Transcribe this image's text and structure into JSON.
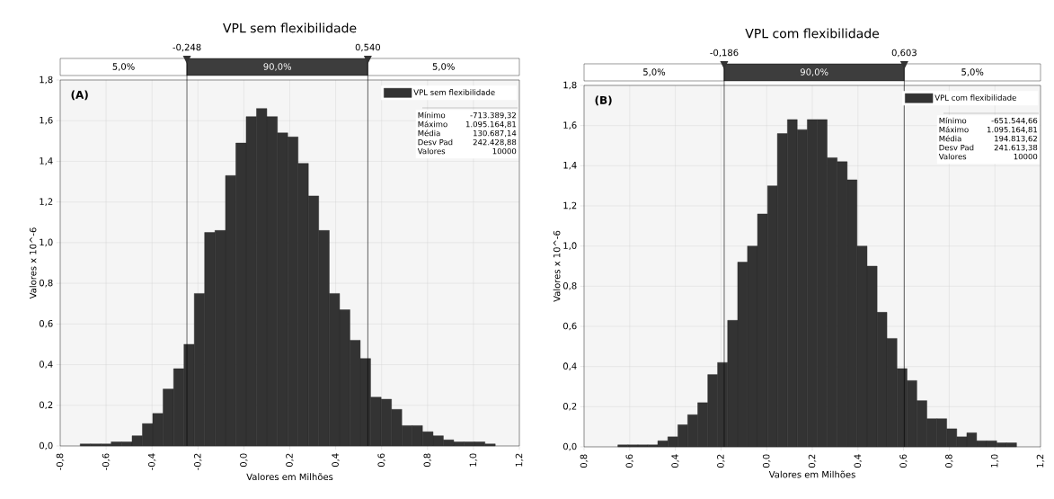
{
  "chart_data": [
    {
      "type": "histogram",
      "title": "VPL sem flexibilidade",
      "xlabel": "Valores em Milhões",
      "ylabel": "Valores x 10^-6",
      "bins": [
        -0.713,
        -0.668,
        -0.623,
        -0.578,
        -0.532,
        -0.487,
        -0.442,
        -0.397,
        -0.352,
        -0.306,
        -0.261,
        -0.216,
        -0.171,
        -0.126,
        -0.08,
        -0.035,
        0.01,
        0.055,
        0.1,
        0.146,
        0.191,
        0.236,
        0.281,
        0.326,
        0.372,
        0.417,
        0.462,
        0.507,
        0.552,
        0.598,
        0.643,
        0.688,
        0.733,
        0.778,
        0.824,
        0.869,
        0.914,
        0.959,
        1.004,
        1.05,
        1.095
      ],
      "series": [
        {
          "name": "VPL sem flexibilidade",
          "color": "#333333",
          "values": [
            0.01,
            0.01,
            0.01,
            0.02,
            0.02,
            0.05,
            0.11,
            0.16,
            0.28,
            0.38,
            0.5,
            0.75,
            1.05,
            1.06,
            1.33,
            1.49,
            1.62,
            1.66,
            1.62,
            1.54,
            1.52,
            1.39,
            1.23,
            1.06,
            0.75,
            0.67,
            0.52,
            0.43,
            0.24,
            0.23,
            0.18,
            0.1,
            0.1,
            0.07,
            0.05,
            0.03,
            0.02,
            0.02,
            0.02,
            0.01
          ]
        }
      ],
      "xlim": [
        -0.8,
        1.2
      ],
      "xticks": [
        {
          "value": -0.8,
          "label": "-0,8"
        },
        {
          "value": -0.6,
          "label": "-0,6"
        },
        {
          "value": -0.4,
          "label": "-0,4"
        },
        {
          "value": -0.2,
          "label": "-0,2"
        },
        {
          "value": 0,
          "label": "0,0"
        },
        {
          "value": 0.2,
          "label": "0,2"
        },
        {
          "value": 0.4,
          "label": "0,4"
        },
        {
          "value": 0.6,
          "label": "0,6"
        },
        {
          "value": 0.8,
          "label": "0,8"
        },
        {
          "value": 1.0,
          "label": "1,0"
        },
        {
          "value": 1.2,
          "label": "1,2"
        }
      ],
      "ylim": [
        0,
        1.8
      ],
      "yticks": [
        {
          "value": 0,
          "label": "0,0"
        },
        {
          "value": 0.2,
          "label": "0,2"
        },
        {
          "value": 0.4,
          "label": "0,4"
        },
        {
          "value": 0.6,
          "label": "0,6"
        },
        {
          "value": 0.8,
          "label": "0,8"
        },
        {
          "value": 1.0,
          "label": "1,0"
        },
        {
          "value": 1.2,
          "label": "1,2"
        },
        {
          "value": 1.4,
          "label": "1,4"
        },
        {
          "value": 1.6,
          "label": "1,6"
        },
        {
          "value": 1.8,
          "label": "1,8"
        }
      ],
      "grid": true,
      "legend": "top right",
      "ref_lines": [
        {
          "axis": "x",
          "value": -0.248,
          "label": "-0,248"
        },
        {
          "axis": "x",
          "value": 0.54,
          "label": "0,540"
        }
      ],
      "annotations": [
        "(A)",
        "Mínimo",
        "-713.389,32",
        "Máximo",
        "1.095.164,81",
        "Média",
        "130.687,14",
        "Desv Pad",
        "242.428,88",
        "Valores",
        "10000",
        "5,0%",
        "90,0%",
        "5,0%"
      ]
    },
    {
      "type": "histogram",
      "title": "VPL com flexibilidade",
      "xlabel": "Valores em Milhões",
      "ylabel": "Valores x 10^-6",
      "bins": [
        -0.652,
        -0.608,
        -0.564,
        -0.52,
        -0.477,
        -0.433,
        -0.389,
        -0.346,
        -0.302,
        -0.258,
        -0.215,
        -0.171,
        -0.127,
        -0.084,
        -0.04,
        0.004,
        0.047,
        0.091,
        0.134,
        0.178,
        0.222,
        0.265,
        0.309,
        0.353,
        0.396,
        0.44,
        0.484,
        0.527,
        0.571,
        0.615,
        0.658,
        0.702,
        0.746,
        0.789,
        0.833,
        0.877,
        0.92,
        0.964,
        1.008,
        1.051,
        1.095
      ],
      "series": [
        {
          "name": "VPL com flexibilidade",
          "color": "#333333",
          "values": [
            0.01,
            0.01,
            0.01,
            0.01,
            0.03,
            0.05,
            0.11,
            0.16,
            0.22,
            0.36,
            0.42,
            0.63,
            0.92,
            1.0,
            1.16,
            1.3,
            1.56,
            1.63,
            1.58,
            1.63,
            1.63,
            1.44,
            1.42,
            1.33,
            1.0,
            0.9,
            0.67,
            0.54,
            0.39,
            0.33,
            0.23,
            0.14,
            0.14,
            0.09,
            0.05,
            0.07,
            0.03,
            0.03,
            0.02,
            0.02
          ]
        }
      ],
      "xlim": [
        -0.8,
        1.2
      ],
      "xticks": [
        {
          "value": -0.8,
          "label": "0,8"
        },
        {
          "value": -0.6,
          "label": "0,6"
        },
        {
          "value": -0.4,
          "label": "0,4"
        },
        {
          "value": -0.2,
          "label": "0,2"
        },
        {
          "value": 0,
          "label": "0,0"
        },
        {
          "value": 0.2,
          "label": "0,2"
        },
        {
          "value": 0.4,
          "label": "0,4"
        },
        {
          "value": 0.6,
          "label": "0,6"
        },
        {
          "value": 0.8,
          "label": "0,8"
        },
        {
          "value": 1.0,
          "label": "1,0"
        },
        {
          "value": 1.2,
          "label": "1,2"
        }
      ],
      "ylim": [
        0,
        1.8
      ],
      "yticks": [
        {
          "value": 0,
          "label": "0,0"
        },
        {
          "value": 0.2,
          "label": "0,2"
        },
        {
          "value": 0.4,
          "label": "0,4"
        },
        {
          "value": 0.6,
          "label": "0,6"
        },
        {
          "value": 0.8,
          "label": "0,8"
        },
        {
          "value": 1.0,
          "label": "1,0"
        },
        {
          "value": 1.2,
          "label": "1,2"
        },
        {
          "value": 1.4,
          "label": "1,4"
        },
        {
          "value": 1.6,
          "label": "1,6"
        },
        {
          "value": 1.8,
          "label": "1,8"
        }
      ],
      "grid": true,
      "legend": "top right",
      "ref_lines": [
        {
          "axis": "x",
          "value": -0.186,
          "label": "-0,186"
        },
        {
          "axis": "x",
          "value": 0.603,
          "label": "0,603"
        }
      ],
      "annotations": [
        "(B)",
        "Mínimo",
        "-651.544,66",
        "Máximo",
        "1.095.164,81",
        "Média",
        "194.813,62",
        "Desv Pad",
        "241.613,38",
        "Valores",
        "10000",
        "5,0%",
        "90,0%",
        "5,0%"
      ]
    }
  ]
}
